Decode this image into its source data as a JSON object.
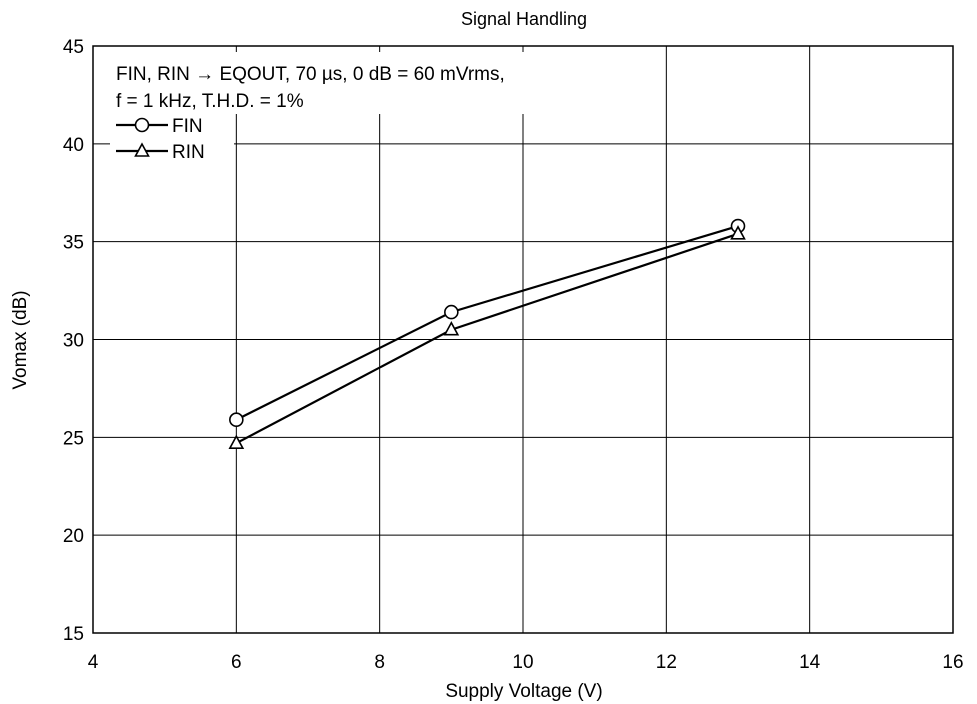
{
  "chart_data": {
    "type": "line",
    "title": "Signal Handling",
    "xlabel": "Supply Voltage  (V)",
    "ylabel": "Vomax  (dB)",
    "xlim": [
      4,
      16
    ],
    "ylim": [
      15,
      45
    ],
    "xticks": [
      "4",
      "6",
      "8",
      "10",
      "12",
      "14",
      "16"
    ],
    "yticks": [
      "15",
      "20",
      "25",
      "30",
      "35",
      "40",
      "45"
    ],
    "grid": true,
    "legend_position": "top-left",
    "annotation": [
      "FIN, RIN → EQOUT, 70 µs, 0 dB = 60 mVrms,",
      "f = 1 kHz, T.H.D. = 1%"
    ],
    "series": [
      {
        "name": "FIN",
        "marker": "circle",
        "x": [
          6,
          9,
          13
        ],
        "y": [
          25.9,
          31.4,
          35.8
        ]
      },
      {
        "name": "RIN",
        "marker": "triangle",
        "x": [
          6,
          9,
          13
        ],
        "y": [
          24.7,
          30.5,
          35.4
        ]
      }
    ]
  }
}
